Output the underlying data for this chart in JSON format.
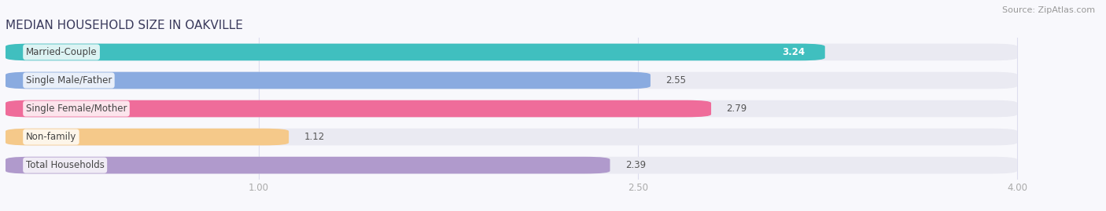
{
  "title": "MEDIAN HOUSEHOLD SIZE IN OAKVILLE",
  "source": "Source: ZipAtlas.com",
  "categories": [
    "Married-Couple",
    "Single Male/Father",
    "Single Female/Mother",
    "Non-family",
    "Total Households"
  ],
  "values": [
    3.24,
    2.55,
    2.79,
    1.12,
    2.39
  ],
  "bar_colors": [
    "#40bfbf",
    "#8aabe0",
    "#ef6c9a",
    "#f5c98a",
    "#b09acc"
  ],
  "bar_bg_color": "#eaeaf2",
  "value_label_colors": [
    "#ffffff",
    "#666666",
    "#666666",
    "#666666",
    "#666666"
  ],
  "xlim": [
    0,
    4.22
  ],
  "x_ticks": [
    1.0,
    2.5,
    4.0
  ],
  "x_tick_labels": [
    "1.00",
    "2.50",
    "4.00"
  ],
  "title_fontsize": 11,
  "source_fontsize": 8,
  "label_fontsize": 8.5,
  "value_fontsize": 8.5,
  "tick_fontsize": 8.5,
  "background_color": "#f8f8fc",
  "title_color": "#3a3a5c",
  "source_color": "#999999",
  "tick_color": "#aaaaaa",
  "grid_color": "#ddddee",
  "label_text_color": "#444444"
}
